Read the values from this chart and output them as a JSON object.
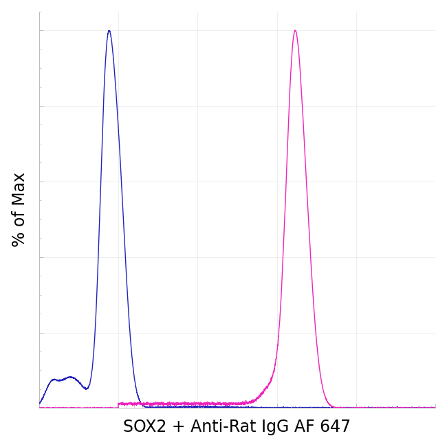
{
  "xlabel": "SOX2 + Anti-Rat IgG AF 647",
  "ylabel": "% of Max",
  "xlabel_fontsize": 17,
  "ylabel_fontsize": 17,
  "bg_color": "#ffffff",
  "blue_color": "#2222bb",
  "pink_color": "#ee22bb",
  "xlim": [
    0,
    1000
  ],
  "ylim": [
    0,
    1.05
  ],
  "grid_color": "#e8e8e8",
  "spine_color": "#bbbbbb"
}
